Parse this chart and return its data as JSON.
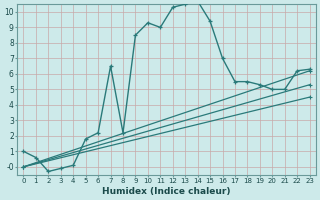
{
  "xlabel": "Humidex (Indice chaleur)",
  "bg_color": "#cdeaea",
  "line_color": "#2a7a7a",
  "grid_color": "#b8d8d8",
  "ylim": [
    -0.5,
    10.5
  ],
  "xlim": [
    -0.5,
    23.5
  ],
  "curve_x": [
    0,
    1,
    2,
    3,
    4,
    5,
    6,
    7,
    8,
    9,
    10,
    11,
    12,
    13,
    14,
    15,
    16,
    17,
    18,
    19,
    20,
    21,
    22,
    23
  ],
  "curve_y": [
    1.0,
    0.6,
    -0.3,
    -0.1,
    0.1,
    1.8,
    2.2,
    6.5,
    2.2,
    8.5,
    9.3,
    9.0,
    10.3,
    10.5,
    10.7,
    9.4,
    7.0,
    5.5,
    5.5,
    5.3,
    5.0,
    5.0,
    6.2,
    6.3
  ],
  "line1_x": [
    0,
    23
  ],
  "line1_y": [
    0.0,
    6.2
  ],
  "line2_x": [
    0,
    23
  ],
  "line2_y": [
    0.0,
    5.3
  ],
  "line3_x": [
    0,
    23
  ],
  "line3_y": [
    0.0,
    4.5
  ],
  "yticks": [
    0,
    1,
    2,
    3,
    4,
    5,
    6,
    7,
    8,
    9,
    10
  ],
  "ytick_labels": [
    "-0",
    "1",
    "2",
    "3",
    "4",
    "5",
    "6",
    "7",
    "8",
    "9",
    "10"
  ],
  "xticks": [
    0,
    1,
    2,
    3,
    4,
    5,
    6,
    7,
    8,
    9,
    10,
    11,
    12,
    13,
    14,
    15,
    16,
    17,
    18,
    19,
    20,
    21,
    22,
    23
  ]
}
